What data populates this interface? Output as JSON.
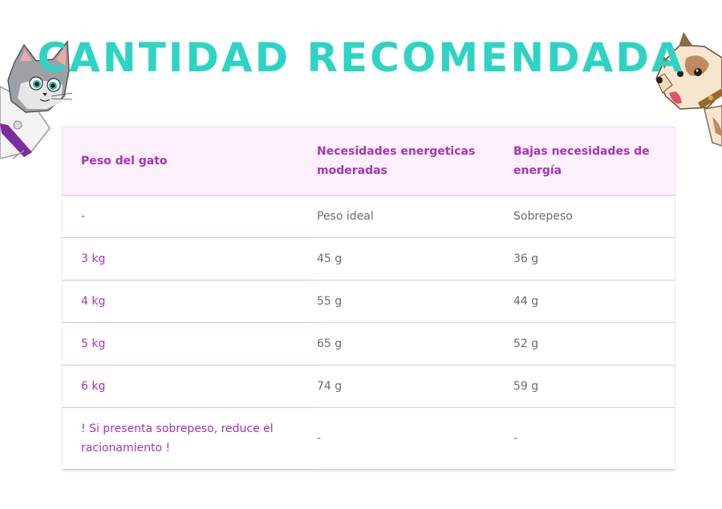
{
  "title": "CANTIDAD RECOMENDADA",
  "colors": {
    "title": "#2dd4c3",
    "accent": "#a832b8",
    "header_bg": "#fbf0fb",
    "text": "#6b6b6b"
  },
  "decorations": {
    "left": "cat-icon",
    "right": "dog-icon"
  },
  "table": {
    "headers": [
      "Peso del gato",
      "Necesidades energeticas moderadas",
      "Bajas necesidades de energía"
    ],
    "rows": [
      [
        "-",
        "Peso ideal",
        "Sobrepeso"
      ],
      [
        "3 kg",
        "45 g",
        "36 g"
      ],
      [
        "4 kg",
        "55 g",
        "44 g"
      ],
      [
        "5 kg",
        "65 g",
        "52 g"
      ],
      [
        "6 kg",
        "74 g",
        "59 g"
      ],
      [
        "! Si presenta sobrepeso, reduce el racionamiento !",
        "-",
        "-"
      ]
    ]
  }
}
